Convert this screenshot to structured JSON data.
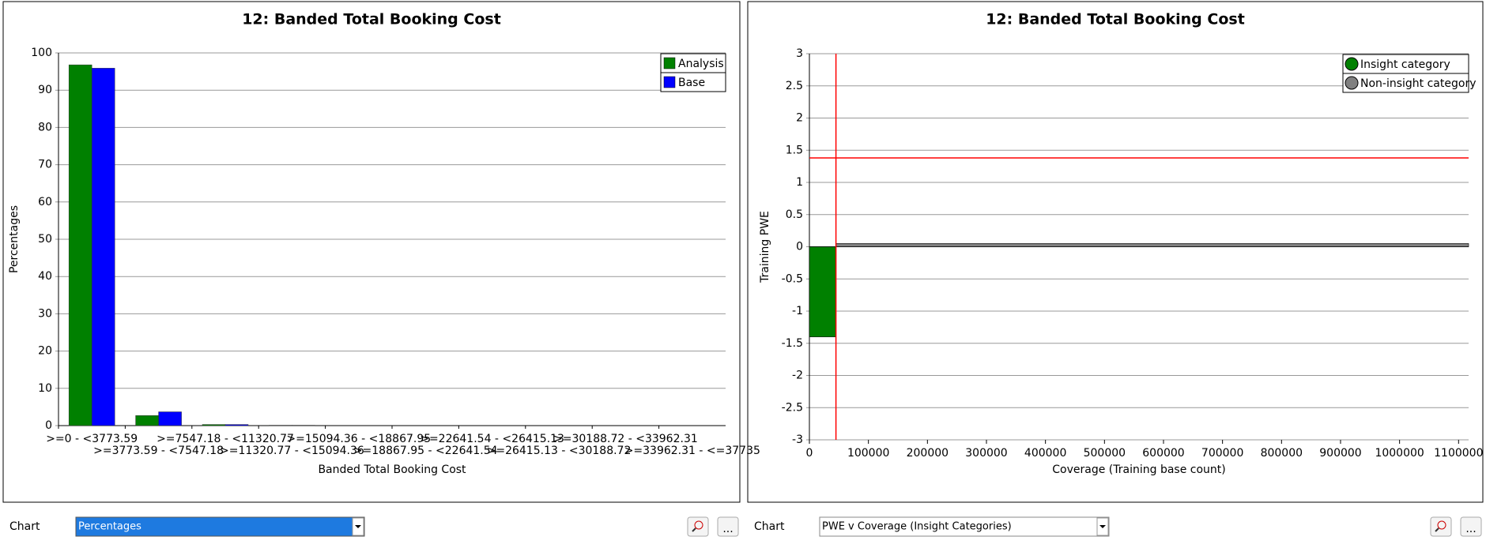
{
  "chart_data": [
    {
      "type": "bar",
      "title": "12: Banded Total Booking Cost",
      "xlabel": "Banded Total Booking Cost",
      "ylabel": "Percentages",
      "categories": [
        ">=0 - <3773.59",
        ">=3773.59 - <7547.18",
        ">=7547.18 - <11320.77",
        ">=11320.77 - <15094.36",
        ">=15094.36 - <18867.95",
        ">=18867.95 - <22641.54",
        ">=22641.54 - <26415.13",
        ">=26415.13 - <30188.72",
        ">=30188.72 - <33962.31",
        ">=33962.31 - <=37735"
      ],
      "series": [
        {
          "name": "Analysis",
          "color": "#008000",
          "values": [
            96.8,
            2.7,
            0.3,
            0.1,
            0,
            0,
            0,
            0,
            0,
            0
          ]
        },
        {
          "name": "Base",
          "color": "#0000ff",
          "values": [
            95.9,
            3.7,
            0.3,
            0.1,
            0,
            0,
            0,
            0,
            0,
            0
          ]
        }
      ],
      "ylim": [
        0,
        100
      ],
      "yticks": [
        0,
        10,
        20,
        30,
        40,
        50,
        60,
        70,
        80,
        90,
        100
      ],
      "grid": true,
      "legend": "upper right"
    },
    {
      "type": "coverage",
      "title": "12: Banded Total Booking Cost",
      "xlabel": "Coverage (Training base count)",
      "ylabel": "Training PWE",
      "series": [
        {
          "name": "Insight category",
          "color": "#008000",
          "coverage": [
            45000
          ],
          "values": [
            -1.4
          ]
        },
        {
          "name": "Non-insight category",
          "color": "#808080",
          "coverage": [
            1072000
          ],
          "values": [
            0.05
          ]
        }
      ],
      "reference_x": 45000,
      "reference_y": 1.38,
      "reference_color": "#ff0000",
      "xlim": [
        0,
        1117000
      ],
      "xticks": [
        0,
        100000,
        200000,
        300000,
        400000,
        500000,
        600000,
        700000,
        800000,
        900000,
        1000000,
        1100000
      ],
      "ylim": [
        -3,
        3
      ],
      "yticks": [
        -3,
        -2.5,
        -2,
        -1.5,
        -1,
        -0.5,
        0,
        0.5,
        1,
        1.5,
        2,
        2.5,
        3
      ],
      "grid": true,
      "legend": "upper right"
    }
  ],
  "controls": [
    {
      "label": "Chart",
      "selection": "Percentages",
      "more": "..."
    },
    {
      "label": "Chart",
      "selection": "PWE v Coverage (Insight Categories)",
      "more": "..."
    }
  ]
}
